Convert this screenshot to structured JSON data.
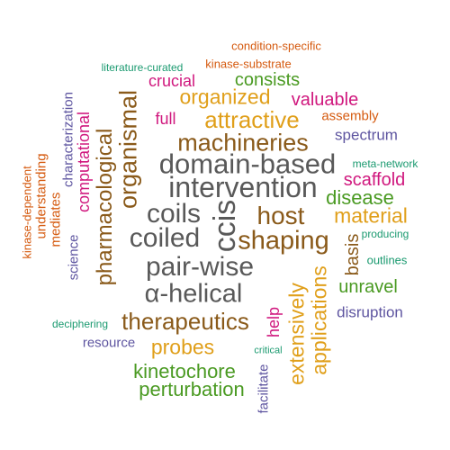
{
  "palette": {
    "grey": "#595959",
    "brown": "#8a5a1a",
    "gold": "#e09f1a",
    "green": "#4a9a22",
    "purple": "#5e55a0",
    "magenta": "#d0187e",
    "orange": "#d55a0f",
    "teal": "#1b9a70"
  },
  "words": [
    {
      "text": "condition-specific",
      "color": "orange"
    },
    {
      "text": "literature-curated",
      "color": "teal"
    },
    {
      "text": "kinase-substrate",
      "color": "orange"
    },
    {
      "text": "crucial",
      "color": "magenta"
    },
    {
      "text": "consists",
      "color": "green"
    },
    {
      "text": "organized",
      "color": "gold"
    },
    {
      "text": "valuable",
      "color": "magenta"
    },
    {
      "text": "full",
      "color": "magenta"
    },
    {
      "text": "attractive",
      "color": "gold"
    },
    {
      "text": "assembly",
      "color": "orange"
    },
    {
      "text": "spectrum",
      "color": "purple"
    },
    {
      "text": "machineries",
      "color": "brown"
    },
    {
      "text": "domain-based",
      "color": "grey"
    },
    {
      "text": "meta-network",
      "color": "teal"
    },
    {
      "text": "intervention",
      "color": "grey"
    },
    {
      "text": "scaffold",
      "color": "magenta"
    },
    {
      "text": "disease",
      "color": "green"
    },
    {
      "text": "coils",
      "color": "grey"
    },
    {
      "text": "host",
      "color": "brown"
    },
    {
      "text": "material",
      "color": "gold"
    },
    {
      "text": "coiled",
      "color": "grey"
    },
    {
      "text": "shaping",
      "color": "brown"
    },
    {
      "text": "producing",
      "color": "teal"
    },
    {
      "text": "pair-wise",
      "color": "grey"
    },
    {
      "text": "outlines",
      "color": "teal"
    },
    {
      "text": "α-helical",
      "color": "grey"
    },
    {
      "text": "unravel",
      "color": "green"
    },
    {
      "text": "disruption",
      "color": "purple"
    },
    {
      "text": "therapeutics",
      "color": "brown"
    },
    {
      "text": "deciphering",
      "color": "teal"
    },
    {
      "text": "resource",
      "color": "purple"
    },
    {
      "text": "probes",
      "color": "gold"
    },
    {
      "text": "critical",
      "color": "teal"
    },
    {
      "text": "kinetochore",
      "color": "green"
    },
    {
      "text": "perturbation",
      "color": "green"
    },
    {
      "text": "ccis",
      "color": "grey"
    },
    {
      "text": "organismal",
      "color": "brown"
    },
    {
      "text": "pharmacological",
      "color": "brown"
    },
    {
      "text": "computational",
      "color": "magenta"
    },
    {
      "text": "characterization",
      "color": "purple"
    },
    {
      "text": "understanding",
      "color": "orange"
    },
    {
      "text": "kinase-dependent",
      "color": "orange"
    },
    {
      "text": "mediates",
      "color": "orange"
    },
    {
      "text": "science",
      "color": "purple"
    },
    {
      "text": "basis",
      "color": "brown"
    },
    {
      "text": "applications",
      "color": "gold"
    },
    {
      "text": "extensively",
      "color": "gold"
    },
    {
      "text": "help",
      "color": "magenta"
    },
    {
      "text": "facilitate",
      "color": "purple"
    }
  ]
}
